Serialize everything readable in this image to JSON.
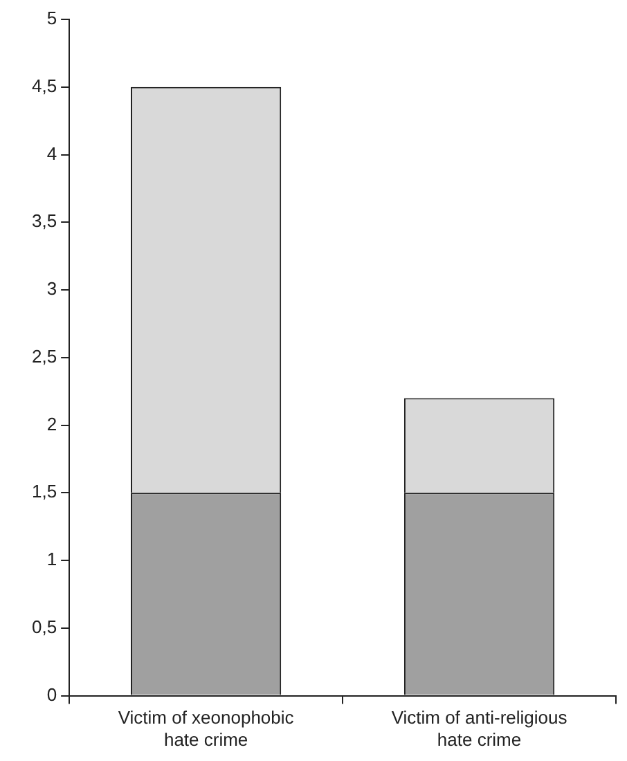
{
  "chart_data": {
    "type": "bar",
    "stacked": true,
    "categories": [
      "Victim of xeonophobic hate crime",
      "Victim of anti-religious hate crime"
    ],
    "series": [
      {
        "color": "#a0a0a0",
        "values": [
          1.5,
          1.5
        ]
      },
      {
        "color": "#d9d9d9",
        "values": [
          3.0,
          0.7
        ]
      }
    ],
    "ylim": [
      0,
      5
    ],
    "yticks": [
      0,
      {
        "value": 0.5,
        "label": "0,5"
      },
      1,
      {
        "value": 1.5,
        "label": "1,5"
      },
      2,
      {
        "value": 2.5,
        "label": "2,5"
      },
      3,
      {
        "value": 3.5,
        "label": "3,5"
      },
      4,
      {
        "value": 4.5,
        "label": "4,5"
      },
      5
    ],
    "grid": false,
    "legend": false
  }
}
